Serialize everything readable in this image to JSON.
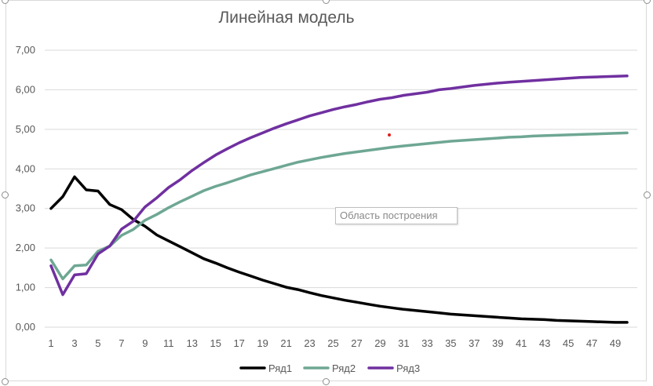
{
  "chart_data": {
    "type": "line",
    "title": "Линейная модель",
    "xlabel": "",
    "ylabel": "",
    "x": [
      1,
      2,
      3,
      4,
      5,
      6,
      7,
      8,
      9,
      10,
      11,
      12,
      13,
      14,
      15,
      16,
      17,
      18,
      19,
      20,
      21,
      22,
      23,
      24,
      25,
      26,
      27,
      28,
      29,
      30,
      31,
      32,
      33,
      34,
      35,
      36,
      37,
      38,
      39,
      40,
      41,
      42,
      43,
      44,
      45,
      46,
      47,
      48,
      49,
      50
    ],
    "x_tick_labels": [
      "1",
      "3",
      "5",
      "7",
      "9",
      "11",
      "13",
      "15",
      "17",
      "19",
      "21",
      "23",
      "25",
      "27",
      "29",
      "31",
      "33",
      "35",
      "37",
      "39",
      "41",
      "43",
      "45",
      "47",
      "49"
    ],
    "ylim": [
      0,
      7
    ],
    "y_tick_labels": [
      "0,00",
      "1,00",
      "2,00",
      "3,00",
      "4,00",
      "5,00",
      "6,00",
      "7,00"
    ],
    "grid": true,
    "legend_position": "bottom",
    "series": [
      {
        "name": "Ряд1",
        "color": "#000000",
        "values": [
          3.0,
          3.3,
          3.8,
          3.47,
          3.44,
          3.1,
          2.97,
          2.72,
          2.55,
          2.33,
          2.18,
          2.03,
          1.88,
          1.73,
          1.62,
          1.5,
          1.39,
          1.29,
          1.19,
          1.1,
          1.01,
          0.95,
          0.87,
          0.8,
          0.74,
          0.68,
          0.63,
          0.58,
          0.53,
          0.49,
          0.45,
          0.42,
          0.39,
          0.36,
          0.33,
          0.31,
          0.29,
          0.27,
          0.25,
          0.23,
          0.21,
          0.2,
          0.19,
          0.17,
          0.16,
          0.15,
          0.14,
          0.13,
          0.12,
          0.12
        ]
      },
      {
        "name": "Ряд2",
        "color": "#6ea793",
        "values": [
          1.7,
          1.22,
          1.55,
          1.57,
          1.92,
          2.05,
          2.32,
          2.47,
          2.7,
          2.85,
          3.02,
          3.17,
          3.31,
          3.45,
          3.56,
          3.65,
          3.75,
          3.85,
          3.93,
          4.01,
          4.09,
          4.17,
          4.23,
          4.29,
          4.34,
          4.39,
          4.43,
          4.47,
          4.51,
          4.55,
          4.58,
          4.61,
          4.64,
          4.67,
          4.7,
          4.72,
          4.74,
          4.76,
          4.78,
          4.8,
          4.81,
          4.83,
          4.84,
          4.85,
          4.86,
          4.87,
          4.88,
          4.89,
          4.9,
          4.91
        ]
      },
      {
        "name": "Ряд3",
        "color": "#7030a0",
        "values": [
          1.55,
          0.82,
          1.32,
          1.35,
          1.85,
          2.05,
          2.48,
          2.68,
          3.04,
          3.27,
          3.53,
          3.73,
          3.96,
          4.16,
          4.35,
          4.51,
          4.66,
          4.79,
          4.91,
          5.03,
          5.14,
          5.24,
          5.34,
          5.42,
          5.5,
          5.57,
          5.63,
          5.7,
          5.76,
          5.8,
          5.86,
          5.9,
          5.94,
          6.0,
          6.03,
          6.07,
          6.11,
          6.14,
          6.17,
          6.19,
          6.21,
          6.23,
          6.25,
          6.27,
          6.29,
          6.31,
          6.32,
          6.33,
          6.34,
          6.35
        ]
      }
    ]
  },
  "tooltip_text": "Область построения"
}
